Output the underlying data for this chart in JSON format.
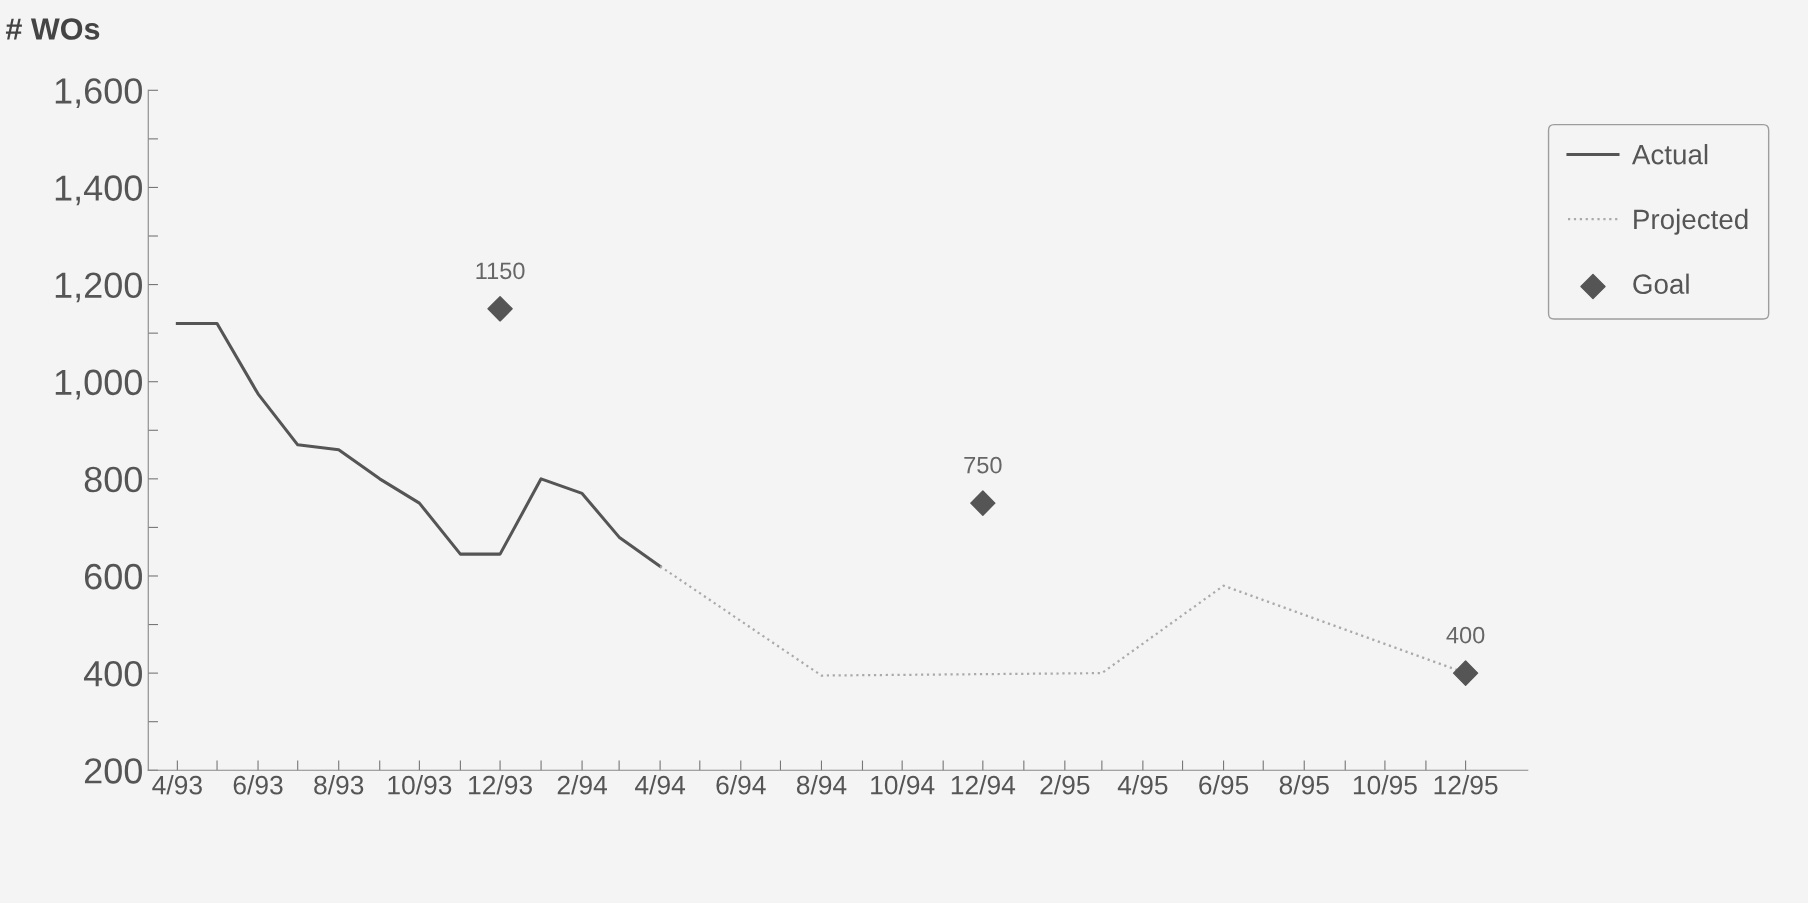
{
  "chart_data": {
    "type": "line",
    "ylabel": "# WOs",
    "xlim": [
      "1993-03-10",
      "1996-01-17"
    ],
    "ylim": [
      200,
      1600
    ],
    "yticks": [
      {
        "value": 200,
        "label": "200"
      },
      {
        "value": 300,
        "label": null
      },
      {
        "value": 400,
        "label": "400"
      },
      {
        "value": 500,
        "label": null
      },
      {
        "value": 600,
        "label": "600"
      },
      {
        "value": 700,
        "label": null
      },
      {
        "value": 800,
        "label": "800"
      },
      {
        "value": 900,
        "label": null
      },
      {
        "value": 1000,
        "label": "1,000"
      },
      {
        "value": 1100,
        "label": null
      },
      {
        "value": 1200,
        "label": "1,200"
      },
      {
        "value": 1300,
        "label": null
      },
      {
        "value": 1400,
        "label": "1,400"
      },
      {
        "value": 1500,
        "label": null
      },
      {
        "value": 1600,
        "label": "1,600"
      }
    ],
    "xticks": [
      {
        "value": "1993-04",
        "label": "4/93"
      },
      {
        "value": "1993-05",
        "label": null
      },
      {
        "value": "1993-06",
        "label": "6/93"
      },
      {
        "value": "1993-07",
        "label": null
      },
      {
        "value": "1993-08",
        "label": "8/93"
      },
      {
        "value": "1993-09",
        "label": null
      },
      {
        "value": "1993-10",
        "label": "10/93"
      },
      {
        "value": "1993-11",
        "label": null
      },
      {
        "value": "1993-12",
        "label": "12/93"
      },
      {
        "value": "1994-01",
        "label": null
      },
      {
        "value": "1994-02",
        "label": "2/94"
      },
      {
        "value": "1994-03",
        "label": null
      },
      {
        "value": "1994-04",
        "label": "4/94"
      },
      {
        "value": "1994-05",
        "label": null
      },
      {
        "value": "1994-06",
        "label": "6/94"
      },
      {
        "value": "1994-07",
        "label": null
      },
      {
        "value": "1994-08",
        "label": "8/94"
      },
      {
        "value": "1994-09",
        "label": null
      },
      {
        "value": "1994-10",
        "label": "10/94"
      },
      {
        "value": "1994-11",
        "label": null
      },
      {
        "value": "1994-12",
        "label": "12/94"
      },
      {
        "value": "1995-01",
        "label": null
      },
      {
        "value": "1995-02",
        "label": "2/95"
      },
      {
        "value": "1995-03",
        "label": null
      },
      {
        "value": "1995-04",
        "label": "4/95"
      },
      {
        "value": "1995-05",
        "label": null
      },
      {
        "value": "1995-06",
        "label": "6/95"
      },
      {
        "value": "1995-07",
        "label": null
      },
      {
        "value": "1995-08",
        "label": "8/95"
      },
      {
        "value": "1995-09",
        "label": null
      },
      {
        "value": "1995-10",
        "label": "10/95"
      },
      {
        "value": "1995-11",
        "label": null
      },
      {
        "value": "1995-12",
        "label": "12/95"
      }
    ],
    "grid": false,
    "legend": "right",
    "series": [
      {
        "name": "Actual",
        "color": "#555555",
        "line_style": "solid",
        "marker": "none",
        "x": [
          "1993-04",
          "1993-05",
          "1993-06",
          "1993-07",
          "1993-08",
          "1993-09",
          "1993-10",
          "1993-11",
          "1993-12",
          "1994-01",
          "1994-02",
          "1994-03",
          "1994-04"
        ],
        "values": [
          1120,
          1120,
          975,
          870,
          860,
          800,
          750,
          645,
          645,
          800,
          770,
          680,
          620
        ]
      },
      {
        "name": "Projected",
        "color": "#aaaaaa",
        "line_style": "dotted",
        "marker": "none",
        "x": [
          "1994-04",
          "1994-08",
          "1995-03",
          "1995-06",
          "1995-12"
        ],
        "values": [
          620,
          395,
          400,
          580,
          400
        ]
      },
      {
        "name": "Goal",
        "type": "scatter",
        "color": "#555555",
        "marker": "diamond",
        "x": [
          "1993-12",
          "1994-12",
          "1995-12"
        ],
        "values": [
          1150,
          750,
          400
        ],
        "value_labels": [
          "1150",
          "750",
          "400"
        ]
      }
    ]
  }
}
